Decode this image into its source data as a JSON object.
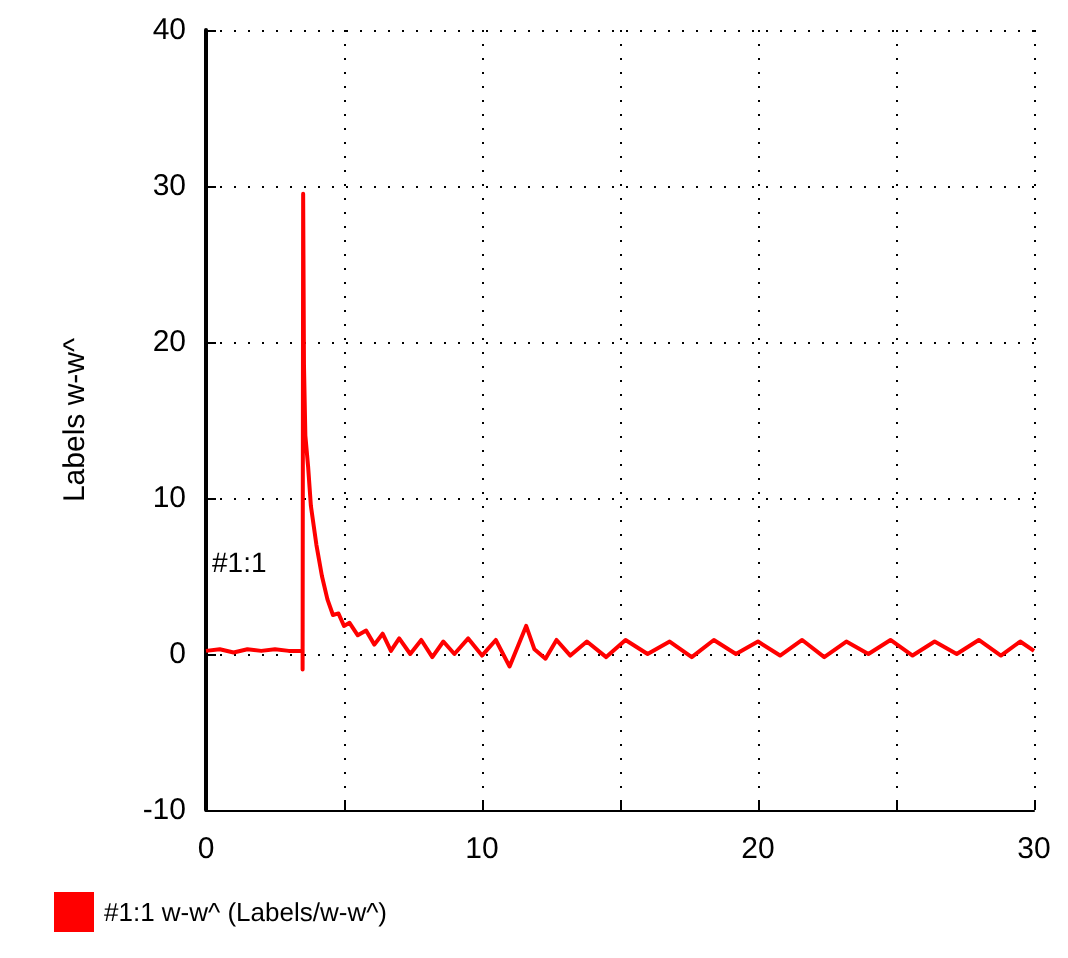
{
  "chart_data": {
    "type": "line",
    "ylabel": "Labels w-w^",
    "legend": "bottom left",
    "grid": true,
    "marker": "none",
    "line_style": "solid",
    "xlim": [
      0,
      30
    ],
    "ylim": [
      -10,
      40
    ],
    "xticks": [
      0,
      {
        "value": 5,
        "label": null
      },
      10,
      {
        "value": 15,
        "label": null
      },
      20,
      {
        "value": 25,
        "label": null
      },
      30
    ],
    "yticks": [
      -10,
      0,
      10,
      20,
      30,
      40
    ],
    "annotations": [
      "#1:1"
    ],
    "series": [
      {
        "name": "#1:1 w-w^ (Labels/w-w^)",
        "color": "#ff0000",
        "x": [
          0,
          0.5,
          1,
          1.5,
          2,
          2.5,
          3,
          3.5,
          3.5,
          3.52,
          3.55,
          3.6,
          3.7,
          3.8,
          4.0,
          4.2,
          4.4,
          4.6,
          4.8,
          5.0,
          5.2,
          5.5,
          5.8,
          6.1,
          6.4,
          6.7,
          7.0,
          7.4,
          7.8,
          8.2,
          8.6,
          9.0,
          9.5,
          10,
          10.5,
          11,
          11.3,
          11.6,
          11.9,
          12.3,
          12.7,
          13.2,
          13.8,
          14.5,
          15.2,
          16,
          16.8,
          17.6,
          18.4,
          19.2,
          20,
          20.8,
          21.6,
          22.4,
          23.2,
          24,
          24.8,
          25.6,
          26.4,
          27.2,
          28,
          28.8,
          29.5,
          30
        ],
        "values": [
          0.2,
          0.3,
          0.1,
          0.3,
          0.2,
          0.3,
          0.2,
          0.2,
          -1,
          29.5,
          18.5,
          14,
          12,
          9.5,
          7,
          5,
          3.5,
          2.5,
          2.6,
          1.8,
          2,
          1.2,
          1.5,
          0.6,
          1.3,
          0.2,
          1,
          0,
          0.9,
          -0.2,
          0.8,
          0,
          1,
          -0.1,
          0.9,
          -0.8,
          0.5,
          1.8,
          0.3,
          -0.3,
          0.9,
          -0.1,
          0.8,
          -0.2,
          0.9,
          0,
          0.8,
          -0.2,
          0.9,
          0,
          0.8,
          -0.1,
          0.9,
          -0.2,
          0.8,
          0,
          0.9,
          -0.1,
          0.8,
          0,
          0.9,
          -0.1,
          0.8,
          0.2
        ]
      }
    ]
  }
}
